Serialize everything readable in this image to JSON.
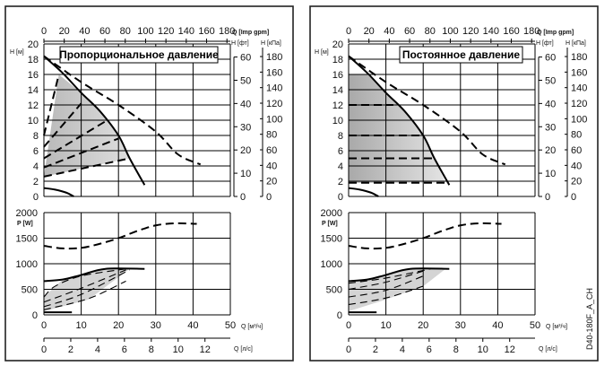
{
  "chart_data": [
    {
      "type": "line",
      "panel": "left",
      "title": "Пропорциональное давление",
      "control_mode": "proportional",
      "top": {
        "xlabel_top": "Q [Imp gpm]",
        "xticks_top": [
          0,
          20,
          40,
          60,
          80,
          100,
          120,
          140,
          160,
          180
        ],
        "ylabel": "H [м]",
        "ylim": [
          0,
          20
        ],
        "yticks": [
          0,
          2,
          4,
          6,
          8,
          10,
          12,
          14,
          16,
          18,
          20
        ],
        "ylabel_ft": "H [фт]",
        "yticks_ft": [
          0,
          10,
          20,
          30,
          40,
          50,
          60
        ],
        "ylabel_kpa": "H [кПа]",
        "yticks_kpa": [
          0,
          20,
          40,
          60,
          80,
          100,
          120,
          140,
          160,
          180
        ],
        "xlim": [
          0,
          50
        ],
        "series": [
          {
            "name": "max curve (solid)",
            "style": "solid",
            "x": [
              0,
              5,
              10,
              15,
              20,
              23,
              27
            ],
            "y": [
              18.4,
              16.2,
              13.6,
              11.2,
              8,
              5,
              1.5
            ]
          },
          {
            "name": "max curve twin (dashed)",
            "style": "dash",
            "x": [
              0,
              10,
              20,
              30,
              36,
              42
            ],
            "y": [
              18.4,
              15,
              12,
              8.5,
              5.5,
              4.2
            ]
          },
          {
            "name": "min curve",
            "style": "solid",
            "x": [
              0,
              3,
              6,
              8
            ],
            "y": [
              1.1,
              0.9,
              0.5,
              0
            ]
          },
          {
            "name": "prop line 1",
            "style": "dash",
            "x": [
              0,
              4
            ],
            "y": [
              8,
              16
            ]
          },
          {
            "name": "prop line 2",
            "style": "dash",
            "x": [
              0,
              10
            ],
            "y": [
              6.5,
              12.2
            ]
          },
          {
            "name": "prop line 3",
            "style": "dash",
            "x": [
              0,
              17
            ],
            "y": [
              5,
              10
            ]
          },
          {
            "name": "prop line 4",
            "style": "dash",
            "x": [
              0,
              20
            ],
            "y": [
              3.8,
              7.6
            ]
          },
          {
            "name": "prop line 5",
            "style": "dash",
            "x": [
              0,
              23
            ],
            "y": [
              2.6,
              5
            ]
          }
        ],
        "shaded_region": {
          "x": [
            0,
            4,
            10,
            15,
            20,
            23,
            0
          ],
          "y": [
            2.6,
            16,
            13.6,
            11.2,
            8,
            5,
            2.6
          ]
        }
      },
      "bottom": {
        "ylabel": "P [W]",
        "ylim": [
          0,
          2000
        ],
        "yticks": [
          0,
          500,
          1000,
          1500,
          2000
        ],
        "xlabel": "Q [м³/ч]",
        "xlim": [
          0,
          50
        ],
        "xticks": [
          0,
          10,
          20,
          30,
          40,
          50
        ],
        "xlabel2": "Q [л/с]",
        "xticks2": [
          0,
          2,
          4,
          6,
          8,
          10,
          12
        ],
        "series": [
          {
            "name": "power max twin (dashed)",
            "style": "dash",
            "x": [
              0,
              5,
              10,
              15,
              20,
              25,
              30,
              35,
              41
            ],
            "y": [
              1350,
              1300,
              1310,
              1390,
              1500,
              1640,
              1750,
              1790,
              1780
            ]
          },
          {
            "name": "power max (solid)",
            "style": "solid",
            "x": [
              0,
              5,
              10,
              16.5,
              27
            ],
            "y": [
              660,
              690,
              780,
              900,
              900
            ]
          },
          {
            "name": "power min",
            "style": "solid",
            "x": [
              0,
              7.5
            ],
            "y": [
              50,
              50
            ]
          },
          {
            "name": "power dash 1",
            "style": "dashThin",
            "x": [
              0,
              3,
              10,
              22
            ],
            "y": [
              350,
              560,
              760,
              900
            ]
          },
          {
            "name": "power dash 2",
            "style": "dashThin",
            "x": [
              0,
              10,
              22
            ],
            "y": [
              250,
              520,
              880
            ]
          },
          {
            "name": "power dash 3",
            "style": "dashThin",
            "x": [
              0,
              10,
              23
            ],
            "y": [
              160,
              400,
              880
            ]
          },
          {
            "name": "power dash 4",
            "style": "dashThin",
            "x": [
              0,
              12,
              22
            ],
            "y": [
              100,
              320,
              660
            ]
          }
        ],
        "shaded_region": {
          "x": [
            0,
            5,
            10,
            16.5,
            23,
            12,
            0
          ],
          "y": [
            350,
            690,
            780,
            900,
            900,
            300,
            70
          ]
        }
      }
    },
    {
      "type": "line",
      "panel": "right",
      "title": "Постоянное давление",
      "control_mode": "constant",
      "top": {
        "xlabel_top": "Q [Imp gpm]",
        "xticks_top": [
          0,
          20,
          40,
          60,
          80,
          100,
          120,
          140,
          160,
          180
        ],
        "ylabel": "H [м]",
        "ylim": [
          0,
          20
        ],
        "yticks": [
          0,
          2,
          4,
          6,
          8,
          10,
          12,
          14,
          16,
          18,
          20
        ],
        "ylabel_ft": "H [фт]",
        "yticks_ft": [
          0,
          10,
          20,
          30,
          40,
          50,
          60
        ],
        "ylabel_kpa": "H [кПа]",
        "yticks_kpa": [
          0,
          20,
          40,
          60,
          80,
          100,
          120,
          140,
          160,
          180
        ],
        "xlim": [
          0,
          50
        ],
        "series": [
          {
            "name": "max curve (solid)",
            "style": "solid",
            "x": [
              0,
              5,
              10,
              15,
              20,
              23,
              27
            ],
            "y": [
              18.4,
              16.2,
              13.6,
              11.2,
              8,
              5,
              1.5
            ]
          },
          {
            "name": "max curve twin (dashed)",
            "style": "dash",
            "x": [
              0,
              10,
              20,
              30,
              36,
              42
            ],
            "y": [
              18.4,
              15,
              12,
              8.5,
              5.5,
              4.2
            ]
          },
          {
            "name": "min curve",
            "style": "solid",
            "x": [
              0,
              3,
              6,
              8
            ],
            "y": [
              1.1,
              0.9,
              0.5,
              0
            ]
          },
          {
            "name": "const line 1",
            "style": "dash",
            "x": [
              0,
              12
            ],
            "y": [
              12,
              12
            ]
          },
          {
            "name": "const line 2",
            "style": "dash",
            "x": [
              0,
              20
            ],
            "y": [
              8,
              8
            ]
          },
          {
            "name": "const line 3",
            "style": "dash",
            "x": [
              0,
              23
            ],
            "y": [
              5,
              5
            ]
          },
          {
            "name": "const line 4",
            "style": "dash",
            "x": [
              0,
              26
            ],
            "y": [
              1.8,
              1.8
            ]
          }
        ],
        "shaded_region": {
          "x": [
            0,
            0,
            5,
            10,
            15,
            20,
            23,
            26,
            0
          ],
          "y": [
            1.8,
            16,
            16,
            13.6,
            11.2,
            8,
            5,
            1.8,
            1.8
          ]
        }
      },
      "bottom": {
        "ylabel": "P [W]",
        "ylim": [
          0,
          2000
        ],
        "yticks": [
          0,
          500,
          1000,
          1500,
          2000
        ],
        "xlabel": "Q [м³/ч]",
        "xlim": [
          0,
          50
        ],
        "xticks": [
          0,
          10,
          20,
          30,
          40,
          50
        ],
        "xlabel2": "Q [л/с]",
        "xticks2": [
          0,
          2,
          4,
          6,
          8,
          10,
          12
        ],
        "series": [
          {
            "name": "power max twin (dashed)",
            "style": "dash",
            "x": [
              0,
              5,
              10,
              15,
              20,
              25,
              30,
              35,
              41
            ],
            "y": [
              1350,
              1300,
              1310,
              1390,
              1500,
              1640,
              1750,
              1790,
              1780
            ]
          },
          {
            "name": "power max (solid)",
            "style": "solid",
            "x": [
              0,
              5,
              10,
              16.5,
              27
            ],
            "y": [
              660,
              690,
              780,
              900,
              900
            ]
          },
          {
            "name": "power min",
            "style": "solid",
            "x": [
              0,
              7.5
            ],
            "y": [
              50,
              50
            ]
          },
          {
            "name": "power dash 1",
            "style": "dashThin",
            "x": [
              0,
              10,
              22
            ],
            "y": [
              620,
              720,
              900
            ]
          },
          {
            "name": "power dash 2",
            "style": "dashThin",
            "x": [
              0,
              10,
              21
            ],
            "y": [
              500,
              640,
              880
            ]
          },
          {
            "name": "power dash 3",
            "style": "dashThin",
            "x": [
              0,
              10,
              20
            ],
            "y": [
              350,
              480,
              760
            ]
          },
          {
            "name": "power dash 4",
            "style": "dashThin",
            "x": [
              0,
              10,
              20
            ],
            "y": [
              200,
              330,
              560
            ]
          }
        ],
        "shaded_region": {
          "x": [
            0,
            5,
            10,
            16.5,
            26,
            20,
            10,
            0
          ],
          "y": [
            640,
            690,
            780,
            900,
            900,
            560,
            300,
            70
          ]
        }
      }
    }
  ],
  "figure_code": "D40-180F_A_CH"
}
